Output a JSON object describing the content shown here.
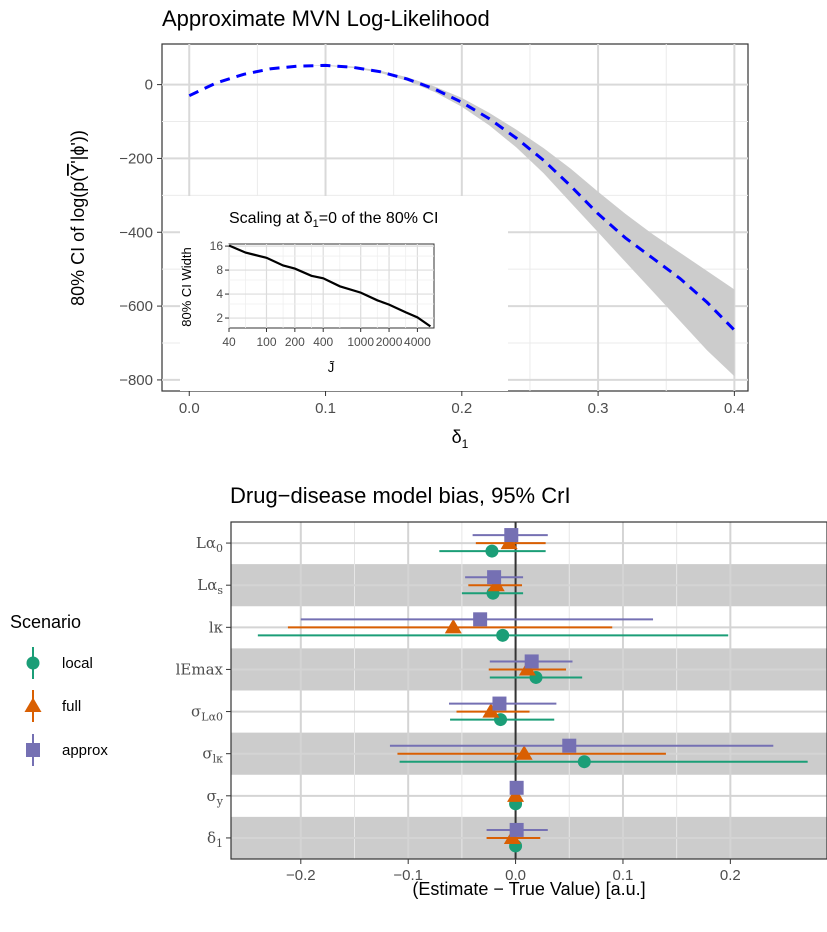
{
  "chart_data": [
    {
      "type": "line",
      "title": "Approximate MVN Log-Likelihood",
      "xlabel": "δ1",
      "ylabel": "80% CI of log(p(Ȳ'|ϕ'))",
      "xlim": [
        -0.02,
        0.41
      ],
      "ylim": [
        -830,
        110
      ],
      "x_ticks": [
        0.0,
        0.1,
        0.2,
        0.3,
        0.4
      ],
      "x_tick_labels": [
        "0.0",
        "0.1",
        "0.2",
        "0.3",
        "0.4"
      ],
      "y_ticks": [
        0,
        -200,
        -400,
        -600,
        -800
      ],
      "y_tick_labels": [
        "0",
        "−200",
        "−400",
        "−600",
        "−800"
      ],
      "grid": true,
      "series": [
        {
          "color": "#0000ff",
          "style": "dashed",
          "x": [
            0.0,
            0.02,
            0.04,
            0.06,
            0.08,
            0.1,
            0.12,
            0.14,
            0.16,
            0.18,
            0.2,
            0.22,
            0.24,
            0.26,
            0.28,
            0.3,
            0.32,
            0.34,
            0.36,
            0.38,
            0.4
          ],
          "y": [
            -30,
            5,
            28,
            43,
            50,
            52,
            47,
            35,
            15,
            -12,
            -48,
            -92,
            -145,
            -205,
            -275,
            -350,
            -415,
            -470,
            -525,
            -590,
            -665
          ],
          "band_lower": [
            -30,
            5,
            28,
            43,
            50,
            51,
            45,
            32,
            10,
            -20,
            -60,
            -110,
            -170,
            -240,
            -320,
            -400,
            -480,
            -560,
            -640,
            -720,
            -790
          ],
          "band_upper": [
            -30,
            5,
            28,
            43,
            50,
            53,
            49,
            38,
            20,
            -5,
            -36,
            -76,
            -122,
            -172,
            -228,
            -290,
            -350,
            -405,
            -455,
            -505,
            -555
          ]
        }
      ],
      "inset": {
        "title": "Scaling at δ1=0 of the 80% CI",
        "xlabel": "J̃",
        "ylabel": "80% CI Width",
        "x_tick_labels": [
          "40",
          "100",
          "200",
          "400",
          "1000",
          "2000",
          "4000"
        ],
        "x_ticks": [
          40,
          100,
          200,
          400,
          1000,
          2000,
          4000
        ],
        "y_tick_labels": [
          "16",
          "8",
          "4",
          "2"
        ],
        "y_ticks": [
          16,
          8,
          4,
          2
        ],
        "xlim": [
          40,
          6000
        ],
        "ylim": [
          1.5,
          17
        ],
        "scale": "log-log",
        "x": [
          40,
          60,
          100,
          150,
          200,
          300,
          400,
          600,
          1000,
          1500,
          2000,
          3000,
          4000,
          5500
        ],
        "y": [
          16,
          13.5,
          11.2,
          9.3,
          8.2,
          6.9,
          6.2,
          5.1,
          4.1,
          3.4,
          2.9,
          2.4,
          2.0,
          1.6
        ]
      }
    },
    {
      "type": "scatter",
      "title": "Drug−disease model bias, 95% CrI",
      "xlabel": "(Estimate − True Value) [a.u.]",
      "xlim": [
        -0.265,
        0.29
      ],
      "x_ticks": [
        -0.2,
        -0.1,
        0.0,
        0.1,
        0.2
      ],
      "x_tick_labels": [
        "−0.2",
        "−0.1",
        "0.0",
        "0.1",
        "0.2"
      ],
      "categories": [
        {
          "base": "Lα",
          "sub": "0"
        },
        {
          "base": "Lα",
          "sub": "s"
        },
        {
          "base": "lκ",
          "sub": ""
        },
        {
          "base": "lEmax",
          "sub": ""
        },
        {
          "base": "σ",
          "sub": "Lα0"
        },
        {
          "base": "σ",
          "sub": "lκ"
        },
        {
          "base": "σ",
          "sub": "y"
        },
        {
          "base": "δ",
          "sub": "1"
        }
      ],
      "legend": {
        "title": "Scenario",
        "placement": "left"
      },
      "series": [
        {
          "name": "local",
          "color": "#1b9e77",
          "marker": "circle",
          "estimate": [
            -0.022,
            -0.021,
            -0.012,
            0.019,
            -0.014,
            0.064,
            0.0,
            0.0
          ],
          "lower": [
            -0.071,
            -0.05,
            -0.24,
            -0.024,
            -0.061,
            -0.108,
            0.0,
            0.0
          ],
          "upper": [
            0.028,
            0.007,
            0.198,
            0.062,
            0.036,
            0.272,
            0.0,
            0.0
          ]
        },
        {
          "name": "full",
          "color": "#d95f02",
          "marker": "triangle",
          "estimate": [
            -0.006,
            -0.018,
            -0.058,
            0.011,
            -0.023,
            0.008,
            0.0,
            -0.003
          ],
          "lower": [
            -0.037,
            -0.044,
            -0.212,
            -0.025,
            -0.055,
            -0.11,
            0.0,
            -0.027
          ],
          "upper": [
            0.028,
            0.006,
            0.09,
            0.047,
            0.013,
            0.14,
            0.0,
            0.023
          ]
        },
        {
          "name": "approx",
          "color": "#7570b3",
          "marker": "square",
          "estimate": [
            -0.004,
            -0.02,
            -0.033,
            0.015,
            -0.015,
            0.05,
            0.001,
            0.001
          ],
          "lower": [
            -0.04,
            -0.047,
            -0.2,
            -0.024,
            -0.062,
            -0.117,
            0.001,
            -0.027
          ],
          "upper": [
            0.03,
            0.007,
            0.128,
            0.053,
            0.038,
            0.24,
            0.001,
            0.03
          ]
        }
      ]
    }
  ]
}
